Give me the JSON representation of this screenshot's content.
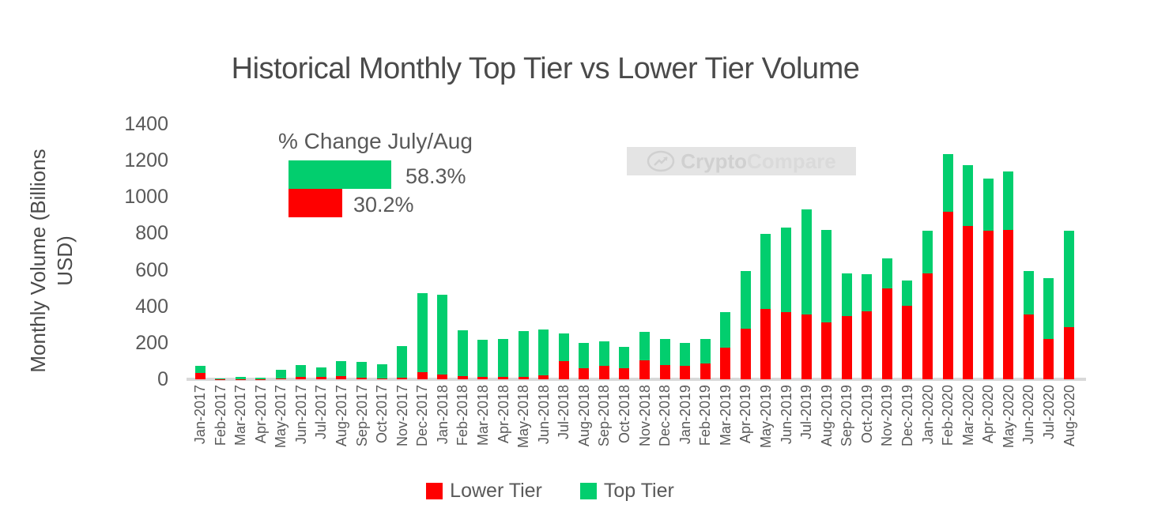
{
  "title": "Historical Monthly Top Tier vs Lower Tier Volume",
  "y_axis": {
    "title": "Monthly Volume (Billions USD)"
  },
  "annotation": {
    "title": "% Change July/Aug",
    "top_tier_change": "58.3%",
    "lower_tier_change": "30.2%"
  },
  "watermark": {
    "part1": "Crypto",
    "part2": "Compare"
  },
  "legend": [
    {
      "label": "Lower Tier",
      "color": "#fe0000"
    },
    {
      "label": "Top Tier",
      "color": "#02ce6e"
    }
  ],
  "colors": {
    "lower_tier": "#fe0000",
    "top_tier": "#02ce6e",
    "axis_line": "#d9d9d9",
    "text": "#595959"
  },
  "chart_data": {
    "type": "bar",
    "stacked": true,
    "title": "Historical Monthly Top Tier vs Lower Tier Volume",
    "xlabel": "",
    "ylabel": "Monthly Volume (Billions USD)",
    "ylim": [
      0,
      1400
    ],
    "yticks": [
      0,
      200,
      400,
      600,
      800,
      1000,
      1200,
      1400
    ],
    "grid": false,
    "legend_position": "bottom",
    "categories": [
      "Jan-2017",
      "Feb-2017",
      "Mar-2017",
      "Apr-2017",
      "May-2017",
      "Jun-2017",
      "Jul-2017",
      "Aug-2017",
      "Sep-2017",
      "Oct-2017",
      "Nov-2017",
      "Dec-2017",
      "Jan-2018",
      "Feb-2018",
      "Mar-2018",
      "Apr-2018",
      "May-2018",
      "Jun-2018",
      "Jul-2018",
      "Aug-2018",
      "Sep-2018",
      "Oct-2018",
      "Nov-2018",
      "Dec-2018",
      "Jan-2019",
      "Feb-2019",
      "Mar-2019",
      "Apr-2019",
      "May-2019",
      "Jun-2019",
      "Jul-2019",
      "Aug-2019",
      "Sep-2019",
      "Oct-2019",
      "Nov-2019",
      "Dec-2019",
      "Jan-2020",
      "Feb-2020",
      "Mar-2020",
      "Apr-2020",
      "May-2020",
      "Jun-2020",
      "Jul-2020",
      "Aug-2020"
    ],
    "series": [
      {
        "name": "Lower Tier",
        "color": "#fe0000",
        "values": [
          33,
          2,
          2,
          2,
          4,
          12,
          13,
          17,
          7,
          4,
          8,
          39,
          27,
          19,
          12,
          12,
          14,
          23,
          99,
          62,
          72,
          59,
          102,
          79,
          75,
          86,
          173,
          278,
          386,
          367,
          357,
          314,
          346,
          374,
          500,
          403,
          580,
          919,
          842,
          816,
          818,
          356,
          219,
          285
        ]
      },
      {
        "name": "Top Tier",
        "color": "#02ce6e",
        "values": [
          39,
          3,
          10,
          8,
          46,
          64,
          50,
          81,
          88,
          78,
          175,
          433,
          437,
          250,
          204,
          210,
          250,
          248,
          154,
          137,
          135,
          118,
          156,
          144,
          124,
          137,
          197,
          317,
          410,
          464,
          573,
          504,
          236,
          202,
          165,
          140,
          234,
          315,
          334,
          284,
          320,
          237,
          335,
          530
        ]
      }
    ],
    "annotations": [
      {
        "text": "% Change July/Aug"
      },
      {
        "series": "Top Tier",
        "text": "58.3%"
      },
      {
        "series": "Lower Tier",
        "text": "30.2%"
      }
    ]
  }
}
